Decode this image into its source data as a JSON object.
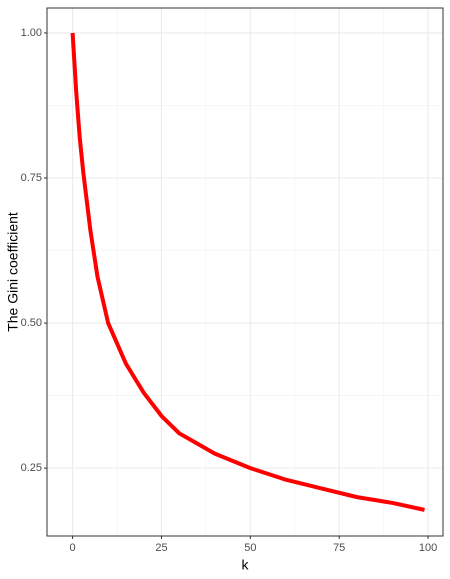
{
  "chart_data": {
    "type": "line",
    "x_label": "k",
    "y_label": "The Gini coefficient",
    "x": [
      0,
      1,
      2,
      3,
      5,
      7,
      10,
      15,
      20,
      25,
      30,
      40,
      50,
      60,
      70,
      80,
      90,
      99
    ],
    "series": [
      {
        "color": "#ff0000",
        "values": [
          1.0,
          0.9,
          0.82,
          0.76,
          0.66,
          0.58,
          0.5,
          0.43,
          0.38,
          0.34,
          0.31,
          0.275,
          0.25,
          0.23,
          0.215,
          0.2,
          0.19,
          0.178
        ]
      }
    ],
    "xlim": [
      -7.2,
      104.2
    ],
    "ylim": [
      0.133,
      1.043
    ],
    "xticks": [
      0,
      25,
      50,
      75,
      100
    ],
    "yticks": [
      {
        "value": 0.25,
        "label": "0.25"
      },
      {
        "value": 0.5,
        "label": "0.50"
      },
      {
        "value": 0.75,
        "label": "0.75"
      },
      {
        "value": 1.0,
        "label": "1.00"
      }
    ],
    "x_minor_ticks": [
      12.5,
      37.5,
      62.5,
      87.5
    ],
    "y_minor_ticks": [
      0.375,
      0.625,
      0.875
    ],
    "grid": true
  }
}
